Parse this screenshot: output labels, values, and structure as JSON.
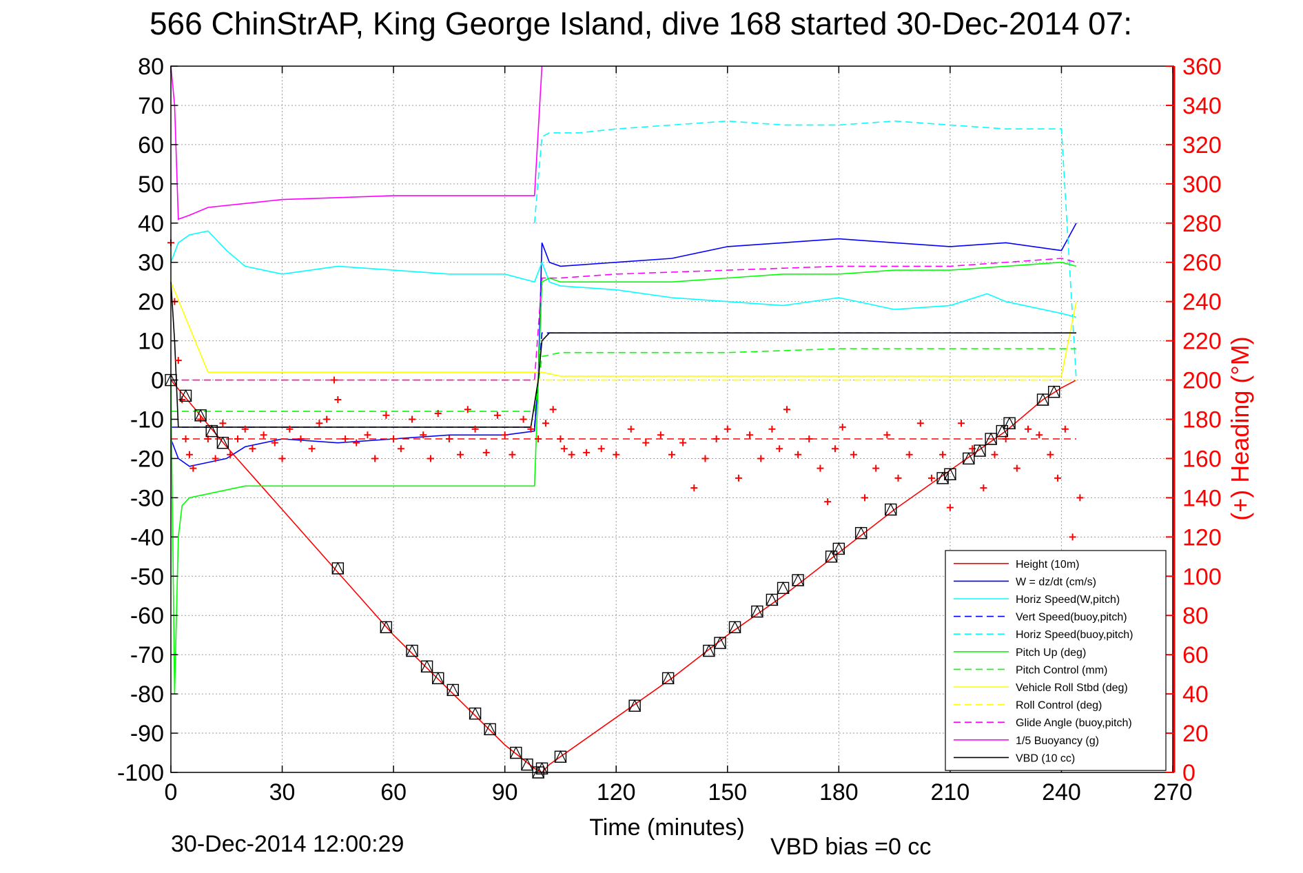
{
  "chart_data": {
    "type": "line",
    "title": "566 ChinStrAP, King George Island, dive 168 started 30-Dec-2014 07:",
    "xlabel": "Time (minutes)",
    "ylabel": "",
    "y2label": "(+) Heading (°M)",
    "xlim": [
      0,
      270
    ],
    "ylim": [
      -100,
      80
    ],
    "y2lim": [
      0,
      360
    ],
    "xticks": [
      "0",
      "30",
      "60",
      "90",
      "120",
      "150",
      "180",
      "210",
      "240",
      "270"
    ],
    "yticks": [
      "80",
      "70",
      "60",
      "50",
      "40",
      "30",
      "20",
      "10",
      "0",
      "-10",
      "-20",
      "-30",
      "-40",
      "-50",
      "-60",
      "-70",
      "-80",
      "-90",
      "-100"
    ],
    "y2ticks": [
      "360",
      "340",
      "320",
      "300",
      "280",
      "260",
      "240",
      "220",
      "200",
      "180",
      "160",
      "140",
      "120",
      "100",
      "80",
      "60",
      "40",
      "20",
      "0"
    ],
    "grid": true,
    "legend_position": "bottom-right",
    "footer_left": "30-Dec-2014 12:00:29",
    "footer_right": "VBD bias =0 cc",
    "colors": {
      "red": "#ff0000",
      "blue": "#0000ff",
      "cyan": "#00ffff",
      "green": "#00ff00",
      "yellow": "#ffff00",
      "magenta": "#ff00ff",
      "black": "#000000"
    },
    "series": [
      {
        "name": "Height (10m)",
        "color": "#ff0000",
        "dash": false,
        "x": [
          0,
          15,
          30,
          45,
          60,
          75,
          90,
          98,
          100,
          102,
          105,
          120,
          135,
          150,
          165,
          180,
          195,
          210,
          225,
          235,
          240,
          244
        ],
        "y": [
          0,
          -17,
          -33,
          -49,
          -65,
          -79,
          -93,
          -99,
          -100,
          -98,
          -96,
          -86,
          -76,
          -65,
          -55,
          -44,
          -33,
          -23,
          -13,
          -5,
          -2,
          0
        ]
      },
      {
        "name": "W = dz/dt (cm/s)",
        "color": "#0000ff",
        "dash": false,
        "x": [
          0,
          2,
          5,
          10,
          15,
          20,
          30,
          45,
          60,
          75,
          90,
          98,
          99,
          100,
          102,
          105,
          120,
          135,
          150,
          165,
          180,
          195,
          210,
          225,
          240,
          244
        ],
        "y": [
          -15,
          -20,
          -22,
          -21,
          -20,
          -17,
          -15,
          -16,
          -15,
          -14,
          -14,
          -13,
          0,
          35,
          30,
          29,
          30,
          31,
          34,
          35,
          36,
          35,
          34,
          35,
          33,
          40
        ]
      },
      {
        "name": "Horiz Speed(W,pitch)",
        "color": "#00ffff",
        "dash": false,
        "x": [
          0,
          2,
          5,
          10,
          15,
          20,
          30,
          45,
          60,
          75,
          90,
          98,
          100,
          102,
          105,
          120,
          135,
          150,
          165,
          180,
          195,
          210,
          220,
          225,
          240,
          244
        ],
        "y": [
          30,
          35,
          37,
          38,
          33,
          29,
          27,
          29,
          28,
          27,
          27,
          25,
          30,
          25,
          24,
          23,
          21,
          20,
          19,
          21,
          18,
          19,
          22,
          20,
          17,
          16
        ]
      },
      {
        "name": "Vert Speed(buoy,pitch)",
        "color": "#0000ff",
        "dash": true,
        "x": [
          0,
          10,
          30,
          60,
          90,
          98,
          100,
          105,
          120,
          150,
          180,
          210,
          240,
          244
        ],
        "y": [
          -12,
          -12,
          -12,
          -12,
          -12,
          -12,
          12,
          12,
          12,
          12,
          12,
          12,
          12,
          12
        ]
      },
      {
        "name": "Horiz Speed(buoy,pitch)",
        "color": "#00ffff",
        "dash": true,
        "x": [
          98,
          100,
          102,
          110,
          120,
          135,
          150,
          165,
          180,
          195,
          210,
          225,
          240,
          244
        ],
        "y": [
          40,
          62,
          63,
          63,
          64,
          65,
          66,
          65,
          65,
          66,
          65,
          64,
          64,
          0
        ]
      },
      {
        "name": "Pitch Up (deg)",
        "color": "#00ff00",
        "dash": false,
        "x": [
          0,
          1,
          2,
          3,
          5,
          10,
          20,
          30,
          45,
          60,
          75,
          90,
          98,
          100,
          102,
          105,
          120,
          135,
          150,
          165,
          180,
          195,
          210,
          225,
          240,
          244
        ],
        "y": [
          0,
          -80,
          -40,
          -32,
          -30,
          -29,
          -27,
          -27,
          -27,
          -27,
          -27,
          -27,
          -27,
          25,
          26,
          25,
          25,
          25,
          26,
          27,
          27,
          28,
          28,
          29,
          30,
          29
        ]
      },
      {
        "name": "Pitch Control (mm)",
        "color": "#00ff00",
        "dash": true,
        "x": [
          0,
          10,
          30,
          60,
          90,
          98,
          100,
          105,
          120,
          150,
          180,
          210,
          240,
          244
        ],
        "y": [
          -8,
          -8,
          -8,
          -8,
          -8,
          -8,
          6,
          7,
          7,
          7,
          8,
          8,
          8,
          8
        ]
      },
      {
        "name": "Vehicle Roll Stbd (deg)",
        "color": "#ffff00",
        "dash": false,
        "x": [
          0,
          10,
          30,
          45,
          60,
          75,
          90,
          98,
          100,
          105,
          120,
          150,
          180,
          210,
          240,
          244
        ],
        "y": [
          25,
          2,
          2,
          2,
          2,
          2,
          2,
          2,
          2,
          1,
          1,
          1,
          1,
          1,
          1,
          20
        ]
      },
      {
        "name": "Roll Control (deg)",
        "color": "#ffff00",
        "dash": true,
        "x": [
          0,
          10,
          30,
          60,
          90,
          98,
          100,
          105,
          120,
          150,
          180,
          210,
          240,
          244
        ],
        "y": [
          0,
          0,
          0,
          0,
          0,
          0,
          0,
          0,
          0,
          0,
          0,
          0,
          0,
          0
        ]
      },
      {
        "name": "Glide Angle (buoy,pitch)",
        "color": "#ff00ff",
        "dash": true,
        "x": [
          0,
          10,
          30,
          60,
          90,
          98,
          100,
          105,
          120,
          150,
          180,
          210,
          240,
          244
        ],
        "y": [
          0,
          0,
          0,
          0,
          0,
          0,
          26,
          26,
          27,
          28,
          29,
          29,
          31,
          30
        ]
      },
      {
        "name": "1/5 Buoyancy (g)",
        "color": "#ff00ff",
        "dash": false,
        "x": [
          0,
          1,
          2,
          5,
          10,
          20,
          30,
          45,
          60,
          75,
          90,
          97,
          98,
          100
        ],
        "y": [
          80,
          70,
          41,
          42,
          44,
          45,
          46,
          46.5,
          47,
          47,
          47,
          47,
          47,
          80
        ]
      },
      {
        "name": "VBD (10 cc)",
        "color": "#000000",
        "dash": false,
        "x": [
          0,
          1,
          2,
          5,
          10,
          30,
          60,
          90,
          97,
          99,
          100,
          102,
          120,
          150,
          180,
          210,
          240,
          244
        ],
        "y": [
          25,
          10,
          -12,
          -12,
          -12,
          -12,
          -12,
          -12,
          -12,
          0,
          10,
          12,
          12,
          12,
          12,
          12,
          12,
          12
        ]
      }
    ],
    "heading": {
      "axis": "right",
      "color": "#ff0000",
      "marker": "+",
      "reference_line": 170,
      "x": [
        0,
        1,
        2,
        3,
        4,
        5,
        6,
        8,
        10,
        12,
        14,
        16,
        18,
        20,
        22,
        25,
        28,
        30,
        32,
        35,
        38,
        40,
        42,
        44,
        45,
        47,
        50,
        53,
        55,
        58,
        60,
        62,
        65,
        68,
        70,
        72,
        75,
        78,
        80,
        82,
        85,
        88,
        90,
        92,
        95,
        97,
        99,
        101,
        103,
        105,
        106,
        108,
        112,
        116,
        120,
        124,
        128,
        132,
        135,
        138,
        141,
        144,
        147,
        150,
        153,
        156,
        159,
        162,
        164,
        166,
        169,
        172,
        175,
        177,
        179,
        181,
        184,
        187,
        190,
        193,
        196,
        199,
        202,
        205,
        208,
        210,
        213,
        216,
        219,
        222,
        225,
        228,
        231,
        234,
        237,
        239,
        241,
        243,
        245
      ],
      "y": [
        270,
        240,
        210,
        190,
        170,
        162,
        155,
        180,
        170,
        160,
        178,
        162,
        170,
        175,
        165,
        172,
        168,
        160,
        175,
        170,
        165,
        178,
        180,
        200,
        190,
        170,
        168,
        172,
        160,
        182,
        170,
        165,
        180,
        172,
        160,
        183,
        170,
        162,
        185,
        175,
        163,
        182,
        172,
        162,
        180,
        175,
        170,
        178,
        185,
        170,
        165,
        162,
        163,
        165,
        162,
        175,
        168,
        172,
        162,
        168,
        145,
        160,
        170,
        175,
        150,
        172,
        160,
        175,
        165,
        185,
        162,
        170,
        155,
        138,
        165,
        176,
        162,
        140,
        155,
        172,
        150,
        162,
        178,
        150,
        162,
        135,
        178,
        165,
        145,
        162,
        170,
        155,
        175,
        172,
        162,
        150,
        175,
        120,
        140
      ]
    },
    "markers": {
      "style": "triangle-in-square",
      "color": "#000000",
      "x": [
        0,
        4,
        8,
        11,
        14,
        45,
        58,
        65,
        69,
        72,
        76,
        82,
        86,
        93,
        96,
        99,
        100,
        105,
        125,
        134,
        145,
        148,
        152,
        158,
        162,
        165,
        169,
        178,
        180,
        186,
        194,
        208,
        210,
        215,
        218,
        221,
        224,
        226,
        235,
        238
      ],
      "y": [
        0,
        -4,
        -9,
        -13,
        -16,
        -48,
        -63,
        -69,
        -73,
        -76,
        -79,
        -85,
        -89,
        -95,
        -98,
        -100,
        -99,
        -96,
        -83,
        -76,
        -69,
        -67,
        -63,
        -59,
        -56,
        -53,
        -51,
        -45,
        -43,
        -39,
        -33,
        -25,
        -24,
        -20,
        -18,
        -15,
        -13,
        -11,
        -5,
        -3
      ]
    }
  }
}
